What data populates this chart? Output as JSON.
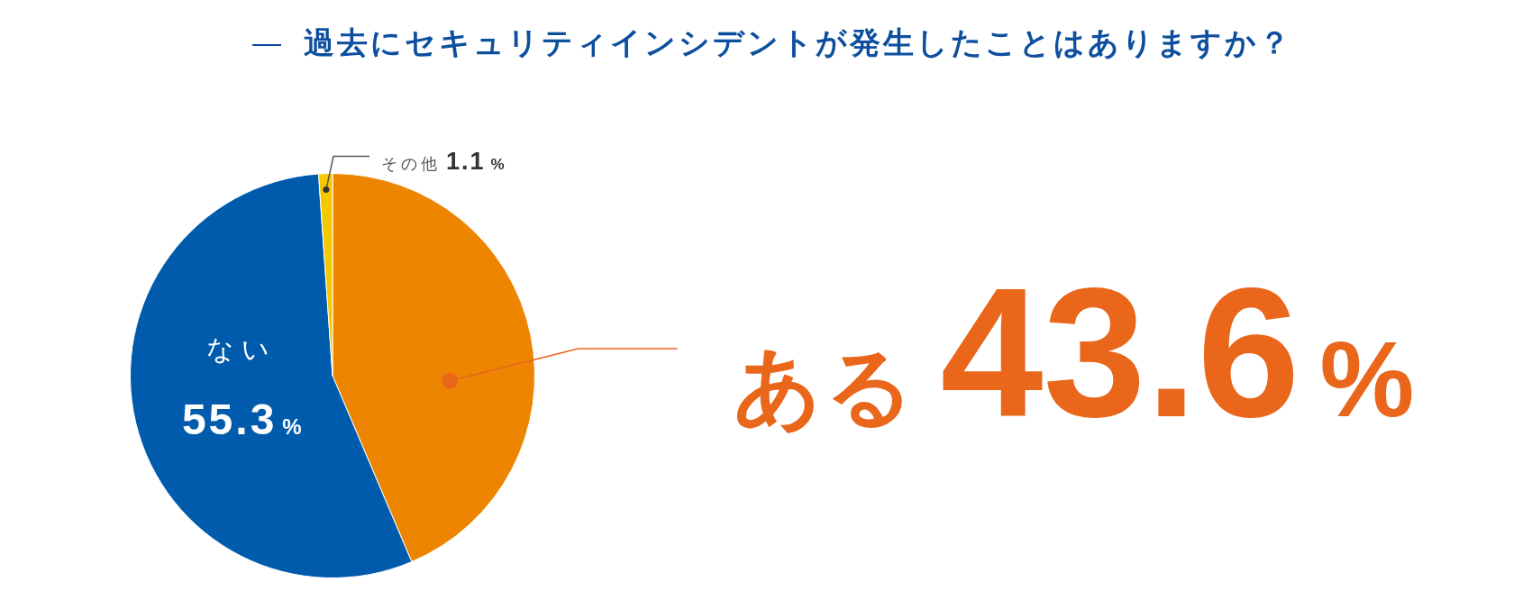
{
  "chart_data": {
    "type": "pie",
    "title": "過去にセキュリティインシデントが発生したことはありますか？",
    "categories": [
      "ある",
      "ない",
      "その他"
    ],
    "values": [
      43.6,
      55.3,
      1.1
    ],
    "colors": [
      "#ee8500",
      "#005bac",
      "#f5c800"
    ],
    "value_labels": [
      "43.6%",
      "55.3%",
      "1.1%"
    ]
  }
}
